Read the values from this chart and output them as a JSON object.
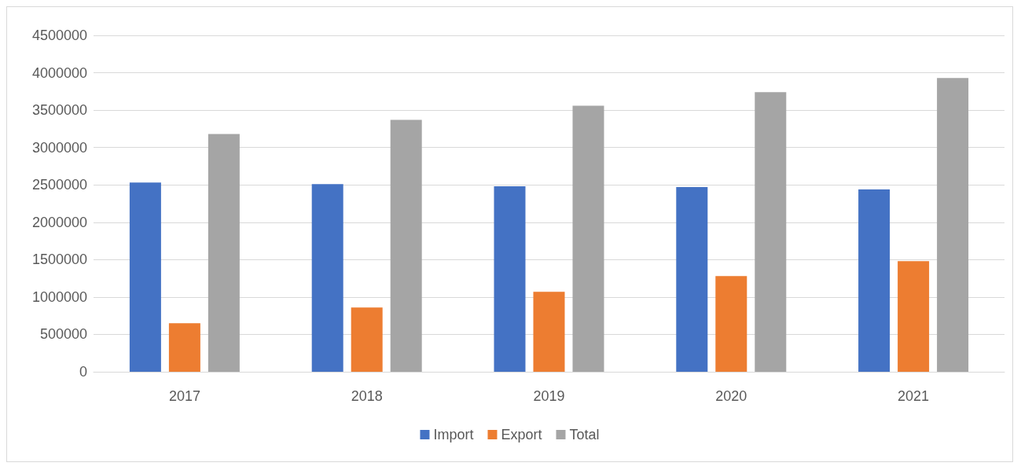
{
  "chart_data": {
    "type": "bar",
    "categories": [
      "2017",
      "2018",
      "2019",
      "2020",
      "2021"
    ],
    "series": [
      {
        "name": "Import",
        "color": "#4472c4",
        "values": [
          2530000,
          2510000,
          2480000,
          2470000,
          2440000
        ]
      },
      {
        "name": "Export",
        "color": "#ed7d31",
        "values": [
          650000,
          860000,
          1070000,
          1280000,
          1480000
        ]
      },
      {
        "name": "Total",
        "color": "#a5a5a5",
        "values": [
          3180000,
          3370000,
          3560000,
          3740000,
          3930000
        ]
      }
    ],
    "ylim": [
      0,
      4500000
    ],
    "yticks": [
      0,
      500000,
      1000000,
      1500000,
      2000000,
      2500000,
      3000000,
      3500000,
      4000000,
      4500000
    ],
    "grid": "y",
    "legend": "bottom"
  }
}
